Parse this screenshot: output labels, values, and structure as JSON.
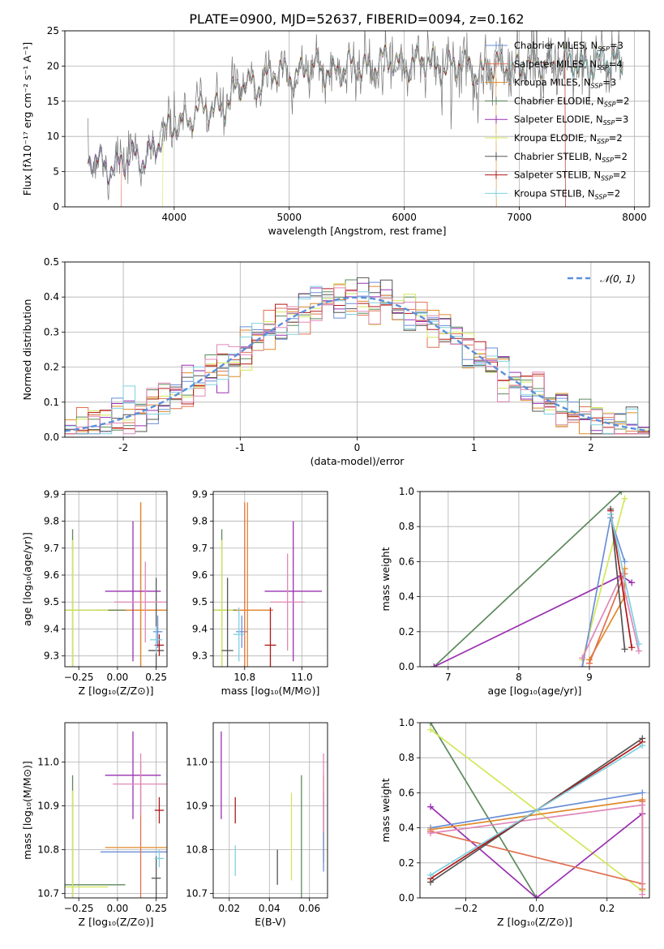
{
  "figure_title": "PLATE=0900, MJD=52637, FIBERID=0094, z=0.162",
  "colors": {
    "Chabrier MILES": "#6a8fd6",
    "Salpeter MILES": "#e07050",
    "Kroupa MILES": "#e08a2a",
    "Chabrier ELODIE": "#5c8a5c",
    "Salpeter ELODIE": "#9a30b0",
    "Kroupa ELODIE": "#d4e65a",
    "Chabrier STELIB": "#555555",
    "Salpeter STELIB": "#b01818",
    "Kroupa STELIB": "#80d0e0",
    "extra_pink": "#e088b8",
    "data": "#777777"
  },
  "chart_data": [
    {
      "id": "spectrum",
      "type": "line",
      "xlabel": "wavelength [Angstrom, rest frame]",
      "ylabel": "Flux [fλ10⁻¹⁷ erg cm⁻² s⁻¹ A⁻¹]",
      "xlim": [
        3050,
        8130
      ],
      "ylim": [
        0,
        25
      ],
      "xticks": [
        4000,
        5000,
        6000,
        7000,
        8000
      ],
      "yticks": [
        0,
        5,
        10,
        15,
        20,
        25
      ],
      "legend_position": "right",
      "legend": [
        {
          "label": "Chabrier MILES, N",
          "sub": "SSP",
          "suffix": "=3"
        },
        {
          "label": "Salpeter MILES, N",
          "sub": "SSP",
          "suffix": "=4"
        },
        {
          "label": "Kroupa MILES, N",
          "sub": "SSP",
          "suffix": "=3"
        },
        {
          "label": "Chabrier ELODIE, N",
          "sub": "SSP",
          "suffix": "=2"
        },
        {
          "label": "Salpeter ELODIE, N",
          "sub": "SSP",
          "suffix": "=3"
        },
        {
          "label": "Kroupa ELODIE, N",
          "sub": "SSP",
          "suffix": "=2"
        },
        {
          "label": "Chabrier STELIB, N",
          "sub": "SSP",
          "suffix": "=2"
        },
        {
          "label": "Salpeter STELIB, N",
          "sub": "SSP",
          "suffix": "=2"
        },
        {
          "label": "Kroupa STELIB, N",
          "sub": "SSP",
          "suffix": "=2"
        }
      ],
      "continuum": [
        [
          3250,
          6.5
        ],
        [
          3500,
          6.0
        ],
        [
          3700,
          7.0
        ],
        [
          3900,
          9.5
        ],
        [
          4050,
          12.5
        ],
        [
          4250,
          13.5
        ],
        [
          4400,
          14.5
        ],
        [
          4600,
          17.0
        ],
        [
          4800,
          18.5
        ],
        [
          5000,
          19.0
        ],
        [
          5200,
          19.5
        ],
        [
          5500,
          19.5
        ],
        [
          5800,
          20.5
        ],
        [
          6100,
          20.5
        ],
        [
          6400,
          20.0
        ],
        [
          6700,
          19.5
        ],
        [
          7000,
          20.0
        ],
        [
          7300,
          20.5
        ],
        [
          7500,
          20.0
        ],
        [
          7700,
          20.5
        ],
        [
          7900,
          20.5
        ]
      ],
      "model_start_x": {
        "Salpeter MILES": 3540,
        "Kroupa ELODIE": 3900
      },
      "model_end_x": {
        "Kroupa MILES": 6800,
        "Salpeter STELIB": 7400
      }
    },
    {
      "id": "residuals",
      "type": "line",
      "xlabel": "(data-model)/error",
      "ylabel": "Normed distribution",
      "xlim": [
        -2.5,
        2.5
      ],
      "ylim": [
        0,
        0.5
      ],
      "xticks": [
        -2,
        -1,
        0,
        1,
        2
      ],
      "yticks": [
        0.0,
        0.1,
        0.2,
        0.3,
        0.4,
        0.5
      ],
      "ytick_labels": [
        "0.0",
        "0.1",
        "0.2",
        "0.3",
        "0.4",
        "0.5"
      ],
      "legend_position": "top-right",
      "legend": [
        "𝒩(0, 1)"
      ],
      "bin_width": 0.1
    },
    {
      "id": "age-vs-Z",
      "type": "scatter",
      "xlabel": "Z [log₁₀(Z/Z⊙)]",
      "ylabel": "age  [log₁₀(age/yr)]",
      "xlim": [
        -0.34,
        0.32
      ],
      "ylim": [
        9.26,
        9.91
      ],
      "xticks": [
        -0.25,
        0.0,
        0.25
      ],
      "xtick_labels": [
        "−0.25",
        "0.00",
        "0.25"
      ],
      "yticks": [
        9.3,
        9.4,
        9.5,
        9.6,
        9.7,
        9.8,
        9.9
      ],
      "points": [
        {
          "name": "Chabrier MILES",
          "x": 0.26,
          "y": 9.39,
          "xerr": 0.03,
          "yerr": 0.06
        },
        {
          "name": "Salpeter MILES",
          "x": 0.15,
          "y": 9.47,
          "xerr": 0.3,
          "yerr": 0.4
        },
        {
          "name": "Kroupa MILES",
          "x": 0.15,
          "y": 9.47,
          "xerr": 0.26,
          "yerr": 0.4
        },
        {
          "name": "Chabrier ELODIE",
          "x": -0.29,
          "y": 9.47,
          "xerr": 0.34,
          "yerr": 0.3
        },
        {
          "name": "Salpeter ELODIE",
          "x": 0.1,
          "y": 9.54,
          "xerr": 0.18,
          "yerr": 0.26
        },
        {
          "name": "Kroupa ELODIE",
          "x": -0.29,
          "y": 9.47,
          "xerr": 0.23,
          "yerr": 0.26
        },
        {
          "name": "Chabrier STELIB",
          "x": 0.25,
          "y": 9.32,
          "xerr": 0.05,
          "yerr": 0.27
        },
        {
          "name": "Salpeter STELIB",
          "x": 0.27,
          "y": 9.34,
          "xerr": 0.03,
          "yerr": 0.04
        },
        {
          "name": "Kroupa STELIB",
          "x": 0.25,
          "y": 9.36,
          "xerr": 0.04,
          "yerr": 0.05
        },
        {
          "name": "extra_pink",
          "x": 0.18,
          "y": 9.5,
          "xerr": 0.2,
          "yerr": 0.15
        }
      ]
    },
    {
      "id": "age-vs-mass",
      "type": "scatter",
      "xlabel": "mass [log₁₀(M/M⊙)]",
      "ylabel": "",
      "xlim": [
        10.69,
        11.09
      ],
      "ylim": [
        9.26,
        9.91
      ],
      "xticks": [
        10.8,
        11.0
      ],
      "xtick_labels": [
        "10.8",
        "11.0"
      ],
      "yticks": [
        9.3,
        9.4,
        9.5,
        9.6,
        9.7,
        9.8,
        9.9
      ],
      "points": [
        {
          "name": "Chabrier MILES",
          "x": 10.79,
          "y": 9.39,
          "xerr": 0.02,
          "yerr": 0.06
        },
        {
          "name": "Salpeter MILES",
          "x": 10.8,
          "y": 9.47,
          "xerr": 0.1,
          "yerr": 0.4
        },
        {
          "name": "Kroupa MILES",
          "x": 10.81,
          "y": 9.47,
          "xerr": 0.08,
          "yerr": 0.4
        },
        {
          "name": "Chabrier ELODIE",
          "x": 10.72,
          "y": 9.47,
          "xerr": 0.05,
          "yerr": 0.3
        },
        {
          "name": "Salpeter ELODIE",
          "x": 10.97,
          "y": 9.54,
          "xerr": 0.1,
          "yerr": 0.26
        },
        {
          "name": "Kroupa ELODIE",
          "x": 10.72,
          "y": 9.47,
          "xerr": 0.04,
          "yerr": 0.26
        },
        {
          "name": "Chabrier STELIB",
          "x": 10.74,
          "y": 9.32,
          "xerr": 0.02,
          "yerr": 0.27
        },
        {
          "name": "Salpeter STELIB",
          "x": 10.89,
          "y": 9.34,
          "xerr": 0.02,
          "yerr": 0.14
        },
        {
          "name": "Kroupa STELIB",
          "x": 10.78,
          "y": 9.38,
          "xerr": 0.02,
          "yerr": 0.1
        },
        {
          "name": "extra_pink",
          "x": 10.95,
          "y": 9.5,
          "xerr": 0.06,
          "yerr": 0.18
        }
      ]
    },
    {
      "id": "massweight-vs-age",
      "type": "line",
      "xlabel": "age  [log₁₀(age/yr)]",
      "ylabel": "mass weight",
      "xlim": [
        6.6,
        9.85
      ],
      "ylim": [
        0,
        1
      ],
      "xticks": [
        7,
        8,
        9
      ],
      "yticks": [
        0.0,
        0.2,
        0.4,
        0.6,
        0.8,
        1.0
      ],
      "ytick_labels": [
        "0.0",
        "0.2",
        "0.4",
        "0.6",
        "0.8",
        "1.0"
      ],
      "series": [
        {
          "name": "Chabrier ELODIE",
          "points": [
            [
              6.8,
              0.0
            ],
            [
              9.45,
              1.0
            ]
          ]
        },
        {
          "name": "Salpeter ELODIE",
          "points": [
            [
              6.8,
              0.0
            ],
            [
              9.45,
              0.52
            ],
            [
              9.6,
              0.48
            ]
          ]
        },
        {
          "name": "Kroupa ELODIE",
          "points": [
            [
              8.9,
              0.04
            ],
            [
              9.5,
              0.96
            ]
          ]
        },
        {
          "name": "Chabrier MILES",
          "points": [
            [
              8.9,
              0.0
            ],
            [
              9.3,
              0.85
            ],
            [
              9.5,
              0.6
            ]
          ]
        },
        {
          "name": "Kroupa MILES",
          "points": [
            [
              9.0,
              0.04
            ],
            [
              9.5,
              0.4
            ],
            [
              9.5,
              0.56
            ]
          ]
        },
        {
          "name": "Salpeter MILES",
          "points": [
            [
              9.0,
              0.02
            ],
            [
              9.5,
              0.53
            ]
          ]
        },
        {
          "name": "extra_pink",
          "points": [
            [
              8.9,
              0.05
            ],
            [
              9.45,
              0.52
            ],
            [
              9.7,
              0.09
            ]
          ]
        },
        {
          "name": "Chabrier STELIB",
          "points": [
            [
              9.3,
              0.9
            ],
            [
              9.5,
              0.1
            ]
          ]
        },
        {
          "name": "Salpeter STELIB",
          "points": [
            [
              9.3,
              0.89
            ],
            [
              9.6,
              0.11
            ]
          ]
        },
        {
          "name": "Kroupa STELIB",
          "points": [
            [
              9.3,
              0.87
            ],
            [
              9.7,
              0.13
            ]
          ]
        }
      ]
    },
    {
      "id": "mass-vs-Z",
      "type": "scatter",
      "xlabel": "Z [log₁₀(Z/Z⊙)]",
      "ylabel": "mass [log₁₀(M/M⊙)]",
      "xlim": [
        -0.34,
        0.32
      ],
      "ylim": [
        10.69,
        11.09
      ],
      "xticks": [
        -0.25,
        0.0,
        0.25
      ],
      "xtick_labels": [
        "−0.25",
        "0.00",
        "0.25"
      ],
      "yticks": [
        10.7,
        10.8,
        10.9,
        11.0
      ],
      "ytick_labels": [
        "10.7",
        "10.8",
        "10.9",
        "11.0"
      ],
      "points": [
        {
          "name": "Chabrier MILES",
          "x": 0.15,
          "y": 10.795,
          "xerr": 0.26,
          "yerr": 0.0
        },
        {
          "name": "Salpeter MILES",
          "x": 0.15,
          "y": 10.8,
          "xerr": 0.0,
          "yerr": 0.2
        },
        {
          "name": "Kroupa MILES",
          "x": 0.15,
          "y": 10.805,
          "xerr": 0.23,
          "yerr": 0.0
        },
        {
          "name": "Chabrier ELODIE",
          "x": -0.29,
          "y": 10.72,
          "xerr": 0.34,
          "yerr": 0.25
        },
        {
          "name": "Salpeter ELODIE",
          "x": 0.1,
          "y": 10.97,
          "xerr": 0.18,
          "yerr": 0.1
        },
        {
          "name": "Kroupa ELODIE",
          "x": -0.29,
          "y": 10.715,
          "xerr": 0.23,
          "yerr": 0.22
        },
        {
          "name": "Chabrier STELIB",
          "x": 0.25,
          "y": 10.735,
          "xerr": 0.03,
          "yerr": 0.05
        },
        {
          "name": "Salpeter STELIB",
          "x": 0.27,
          "y": 10.89,
          "xerr": 0.03,
          "yerr": 0.03
        },
        {
          "name": "Kroupa STELIB",
          "x": 0.27,
          "y": 10.78,
          "xerr": 0.03,
          "yerr": 0.02
        },
        {
          "name": "extra_pink",
          "x": 0.15,
          "y": 10.95,
          "xerr": 0.18,
          "yerr": 0.07
        }
      ]
    },
    {
      "id": "mass-vs-EBV",
      "type": "scatter",
      "xlabel": "E(B-V)",
      "ylabel": "",
      "xlim": [
        0.012,
        0.069
      ],
      "ylim": [
        10.69,
        11.09
      ],
      "xticks": [
        0.02,
        0.04,
        0.06
      ],
      "xtick_labels": [
        "0.02",
        "0.04",
        "0.06"
      ],
      "yticks": [
        10.7,
        10.8,
        10.9,
        11.0
      ],
      "ytick_labels": [
        "10.7",
        "10.8",
        "10.9",
        "11.0"
      ],
      "points": [
        {
          "name": "Salpeter ELODIE",
          "x": 0.016,
          "y": 10.97,
          "xerr": 0,
          "yerr": 0.1
        },
        {
          "name": "Salpeter STELIB",
          "x": 0.023,
          "y": 10.89,
          "xerr": 0,
          "yerr": 0.03
        },
        {
          "name": "Kroupa STELIB",
          "x": 0.023,
          "y": 10.775,
          "xerr": 0,
          "yerr": 0.035
        },
        {
          "name": "Chabrier STELIB",
          "x": 0.044,
          "y": 10.76,
          "xerr": 0,
          "yerr": 0.04
        },
        {
          "name": "Kroupa ELODIE",
          "x": 0.051,
          "y": 10.83,
          "xerr": 0,
          "yerr": 0.1
        },
        {
          "name": "Chabrier ELODIE",
          "x": 0.056,
          "y": 10.83,
          "xerr": 0,
          "yerr": 0.14
        },
        {
          "name": "Kroupa MILES",
          "x": 0.067,
          "y": 10.87,
          "xerr": 0,
          "yerr": 0.1
        },
        {
          "name": "Chabrier MILES",
          "x": 0.067,
          "y": 10.84,
          "xerr": 0,
          "yerr": 0.09
        },
        {
          "name": "extra_pink",
          "x": 0.067,
          "y": 10.93,
          "xerr": 0,
          "yerr": 0.09
        }
      ]
    },
    {
      "id": "massweight-vs-Z",
      "type": "line",
      "xlabel": "Z [log₁₀(Z/Z⊙)]",
      "ylabel": "mass weight",
      "xlim": [
        -0.33,
        0.32
      ],
      "ylim": [
        0,
        1
      ],
      "xticks": [
        -0.2,
        0.0,
        0.2
      ],
      "xtick_labels": [
        "−0.2",
        "0.0",
        "0.2"
      ],
      "yticks": [
        0.0,
        0.2,
        0.4,
        0.6,
        0.8,
        1.0
      ],
      "ytick_labels": [
        "0.0",
        "0.2",
        "0.4",
        "0.6",
        "0.8",
        "1.0"
      ],
      "series": [
        {
          "name": "Chabrier ELODIE",
          "points": [
            [
              -0.3,
              1.0
            ],
            [
              0.0,
              0.0
            ]
          ]
        },
        {
          "name": "Kroupa ELODIE",
          "points": [
            [
              -0.3,
              0.96
            ],
            [
              0.3,
              0.04
            ]
          ]
        },
        {
          "name": "Salpeter ELODIE",
          "points": [
            [
              -0.3,
              0.52
            ],
            [
              0.0,
              0.0
            ],
            [
              0.3,
              0.48
            ]
          ]
        },
        {
          "name": "Chabrier MILES",
          "points": [
            [
              -0.3,
              0.4
            ],
            [
              0.3,
              0.6
            ]
          ]
        },
        {
          "name": "Kroupa MILES",
          "points": [
            [
              -0.3,
              0.39
            ],
            [
              0.3,
              0.56
            ],
            [
              0.3,
              0.05
            ]
          ]
        },
        {
          "name": "Salpeter MILES",
          "points": [
            [
              -0.3,
              0.38
            ],
            [
              0.3,
              0.08
            ],
            [
              0.3,
              0.55
            ]
          ]
        },
        {
          "name": "extra_pink",
          "points": [
            [
              -0.3,
              0.37
            ],
            [
              0.3,
              0.53
            ],
            [
              0.3,
              0.02
            ]
          ]
        },
        {
          "name": "Chabrier STELIB",
          "points": [
            [
              -0.3,
              0.09
            ],
            [
              0.3,
              0.91
            ]
          ]
        },
        {
          "name": "Salpeter STELIB",
          "points": [
            [
              -0.3,
              0.11
            ],
            [
              0.3,
              0.89
            ]
          ]
        },
        {
          "name": "Kroupa STELIB",
          "points": [
            [
              -0.3,
              0.13
            ],
            [
              0.3,
              0.87
            ]
          ]
        }
      ]
    }
  ]
}
